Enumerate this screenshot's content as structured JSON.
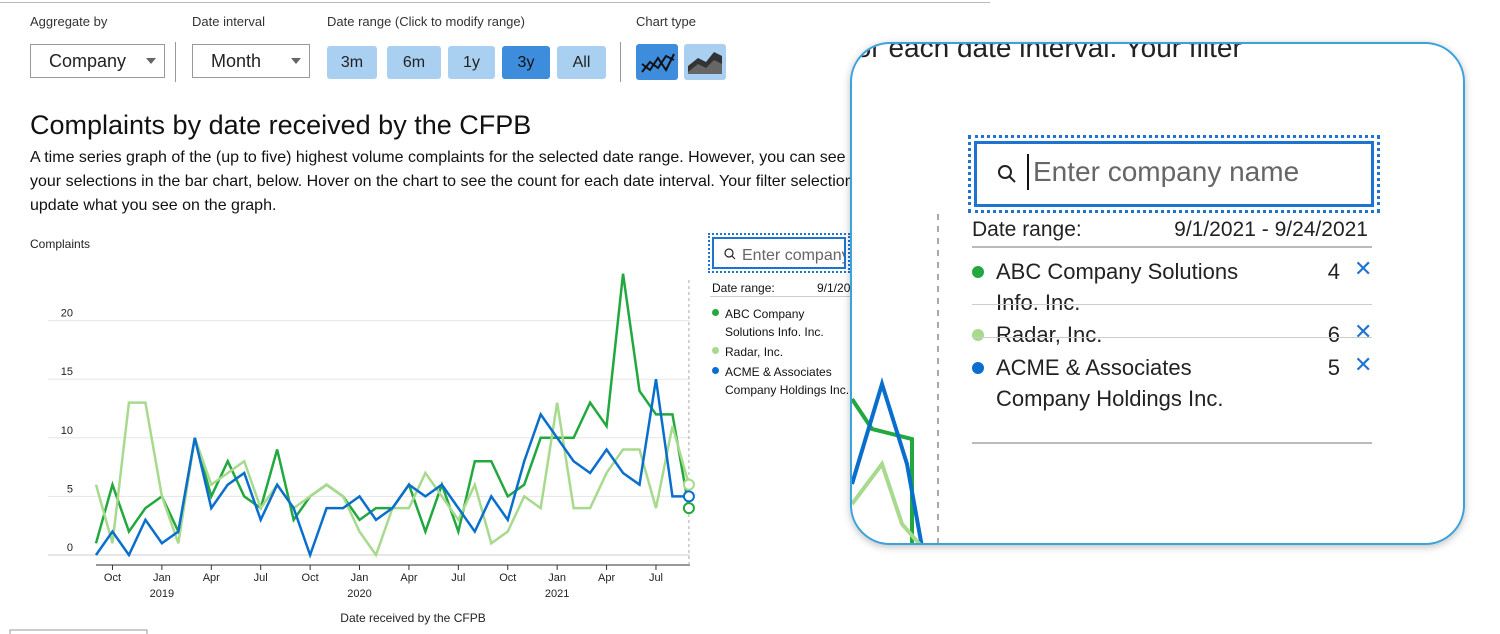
{
  "controls": {
    "aggregate_label": "Aggregate by",
    "aggregate_value": "Company",
    "interval_label": "Date interval",
    "interval_value": "Month",
    "range_label": "Date range (Click to modify range)",
    "range_buttons": [
      "3m",
      "6m",
      "1y",
      "3y",
      "All"
    ],
    "range_selected": "3y",
    "chart_type_label": "Chart type"
  },
  "heading": {
    "title": "Complaints by date received by the CFPB",
    "description": "A time series graph of the (up to five) highest volume complaints for the selected date range. However, you can see all of your selections in the bar chart, below. Hover on the chart to see the count for each date interval. Your filter selections will update what you see on the graph."
  },
  "chart_data": {
    "type": "line",
    "y_label": "Complaints",
    "x_label": "Date received by the CFPB",
    "x": [
      "2018-09",
      "2018-10",
      "2018-11",
      "2018-12",
      "2019-01",
      "2019-02",
      "2019-03",
      "2019-04",
      "2019-05",
      "2019-06",
      "2019-07",
      "2019-08",
      "2019-09",
      "2019-10",
      "2019-11",
      "2019-12",
      "2020-01",
      "2020-02",
      "2020-03",
      "2020-04",
      "2020-05",
      "2020-06",
      "2020-07",
      "2020-08",
      "2020-09",
      "2020-10",
      "2020-11",
      "2020-12",
      "2021-01",
      "2021-02",
      "2021-03",
      "2021-04",
      "2021-05",
      "2021-06",
      "2021-07",
      "2021-08",
      "2021-09"
    ],
    "xticks": [
      {
        "value": "2018-10",
        "label": "Oct"
      },
      {
        "value": "2019-01",
        "label": "Jan"
      },
      {
        "value": "2019-04",
        "label": "Apr"
      },
      {
        "value": "2019-07",
        "label": "Jul"
      },
      {
        "value": "2019-10",
        "label": "Oct"
      },
      {
        "value": "2020-01",
        "label": "Jan"
      },
      {
        "value": "2020-04",
        "label": "Apr"
      },
      {
        "value": "2020-07",
        "label": "Jul"
      },
      {
        "value": "2020-10",
        "label": "Oct"
      },
      {
        "value": "2021-01",
        "label": "Jan"
      },
      {
        "value": "2021-04",
        "label": "Apr"
      },
      {
        "value": "2021-07",
        "label": "Jul"
      }
    ],
    "xtick_years": [
      {
        "value": "2019-01",
        "label": "2019"
      },
      {
        "value": "2020-01",
        "label": "2020"
      },
      {
        "value": "2021-01",
        "label": "2021"
      }
    ],
    "ylim": [
      0,
      25
    ],
    "yticks": [
      0,
      5,
      10,
      15,
      20
    ],
    "grid": true,
    "series": [
      {
        "name": "ABC Company Solutions Info. Inc.",
        "color": "#22a83f",
        "values": [
          1,
          6,
          2,
          4,
          5,
          2,
          10,
          5,
          8,
          5,
          4,
          9,
          3,
          5,
          6,
          5,
          3,
          4,
          4,
          6,
          2,
          6,
          2,
          8,
          8,
          5,
          6,
          10,
          10,
          10,
          13,
          11,
          24,
          14,
          12,
          12,
          4
        ]
      },
      {
        "name": "Radar, Inc.",
        "color": "#a8da8e",
        "values": [
          6,
          1,
          13,
          13,
          5,
          1,
          10,
          6,
          7,
          8,
          4,
          6,
          4,
          5,
          6,
          5,
          2,
          0,
          4,
          4,
          7,
          5,
          3,
          6,
          1,
          2,
          5,
          4,
          13,
          4,
          4,
          7,
          9,
          9,
          4,
          11,
          6
        ]
      },
      {
        "name": "ACME & Associates Company Holdings Inc.",
        "color": "#0a6fcc",
        "values": [
          0,
          2,
          0,
          3,
          1,
          2,
          10,
          4,
          6,
          7,
          3,
          6,
          4,
          0,
          4,
          4,
          5,
          3,
          4,
          6,
          5,
          6,
          4,
          2,
          5,
          3,
          8,
          12,
          10,
          8,
          7,
          9,
          7,
          6,
          15,
          5,
          5
        ]
      }
    ]
  },
  "tooltip": {
    "search_placeholder": "Enter company name",
    "date_range_label": "Date range:",
    "date_range": "9/1/2021 - 9/24/2021"
  },
  "zoom": {
    "caption": "for each date interval. Your filter"
  }
}
